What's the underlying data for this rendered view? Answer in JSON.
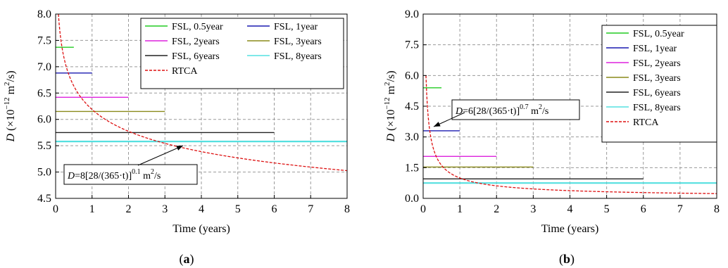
{
  "chart_data": [
    {
      "type": "line",
      "panel_label": "(a)",
      "xlabel": "Time (years)",
      "ylabel_main": "D",
      "ylabel_unit": "(×10",
      "ylabel_exp": "−12",
      "ylabel_unit2": " m",
      "ylabel_sq": "2",
      "ylabel_end": "/s)",
      "xlim": [
        0,
        8
      ],
      "ylim": [
        4.5,
        8.0
      ],
      "xticks": [
        0,
        1,
        2,
        3,
        4,
        5,
        6,
        7,
        8
      ],
      "yticks": [
        4.5,
        5.0,
        5.5,
        6.0,
        6.5,
        7.0,
        7.5,
        8.0
      ],
      "ytick_labels": [
        "4.5",
        "5.0",
        "5.5",
        "6.0",
        "6.5",
        "7.0",
        "7.5",
        "8.0"
      ],
      "grid": true,
      "legend": {
        "placement": "top-right",
        "columns": 2
      },
      "series": [
        {
          "name": "FSL, 0.5year",
          "color": "#22cc22",
          "x": [
            0,
            0.5
          ],
          "y": [
            7.37,
            7.37
          ]
        },
        {
          "name": "FSL, 1year",
          "color": "#1a1ab0",
          "x": [
            0,
            1
          ],
          "y": [
            6.88,
            6.88
          ]
        },
        {
          "name": "FSL, 2years",
          "color": "#dd22dd",
          "x": [
            0,
            2
          ],
          "y": [
            6.42,
            6.42
          ]
        },
        {
          "name": "FSL, 3years",
          "color": "#8a8a1a",
          "x": [
            0,
            3
          ],
          "y": [
            6.15,
            6.15
          ]
        },
        {
          "name": "FSL, 6years",
          "color": "#222222",
          "x": [
            0,
            6
          ],
          "y": [
            5.75,
            5.75
          ]
        },
        {
          "name": "FSL, 8years",
          "color": "#55e0e0",
          "x": [
            0,
            8
          ],
          "y": [
            5.58,
            5.58
          ]
        },
        {
          "name": "RTCA",
          "color": "#dd1111",
          "dashed": true,
          "formula": {
            "a": 8,
            "n": 0.1
          }
        }
      ],
      "annotation": {
        "prefix": "D",
        "body": "=8[28/(365·t)]",
        "exp": "0.1",
        "unit": " m",
        "sq": "2",
        "end": "/s"
      }
    },
    {
      "type": "line",
      "panel_label": "(b)",
      "xlabel": "Time (years)",
      "ylabel_main": "D",
      "ylabel_unit": "(×10",
      "ylabel_exp": "−12",
      "ylabel_unit2": " m",
      "ylabel_sq": "2",
      "ylabel_end": "/s)",
      "xlim": [
        0,
        8
      ],
      "ylim": [
        0,
        9.0
      ],
      "xticks": [
        0,
        1,
        2,
        3,
        4,
        5,
        6,
        7,
        8
      ],
      "yticks": [
        0,
        1.5,
        3.0,
        4.5,
        6.0,
        7.5,
        9.0
      ],
      "ytick_labels": [
        "0.0",
        "1.5",
        "3.0",
        "4.5",
        "6.0",
        "7.5",
        "9.0"
      ],
      "grid": true,
      "legend": {
        "placement": "top-right",
        "columns": 1
      },
      "series": [
        {
          "name": "FSL, 0.5year",
          "color": "#22cc22",
          "x": [
            0,
            0.5
          ],
          "y": [
            5.4,
            5.4
          ]
        },
        {
          "name": "FSL, 1year",
          "color": "#1a1ab0",
          "x": [
            0,
            1
          ],
          "y": [
            3.3,
            3.3
          ]
        },
        {
          "name": "FSL, 2years",
          "color": "#dd22dd",
          "x": [
            0,
            2
          ],
          "y": [
            2.05,
            2.05
          ]
        },
        {
          "name": "FSL, 3years",
          "color": "#8a8a1a",
          "x": [
            0,
            3
          ],
          "y": [
            1.53,
            1.53
          ]
        },
        {
          "name": "FSL, 6years",
          "color": "#222222",
          "x": [
            0,
            6
          ],
          "y": [
            0.95,
            0.95
          ]
        },
        {
          "name": "FSL, 8years",
          "color": "#55e0e0",
          "x": [
            0,
            8
          ],
          "y": [
            0.75,
            0.75
          ]
        },
        {
          "name": "RTCA",
          "color": "#dd1111",
          "dashed": true,
          "formula": {
            "a": 6,
            "n": 0.7
          }
        }
      ],
      "annotation": {
        "prefix": "D",
        "body": "=6[28/(365·t)]",
        "exp": "0.7",
        "unit": " m",
        "sq": "2",
        "end": "/s"
      }
    }
  ]
}
